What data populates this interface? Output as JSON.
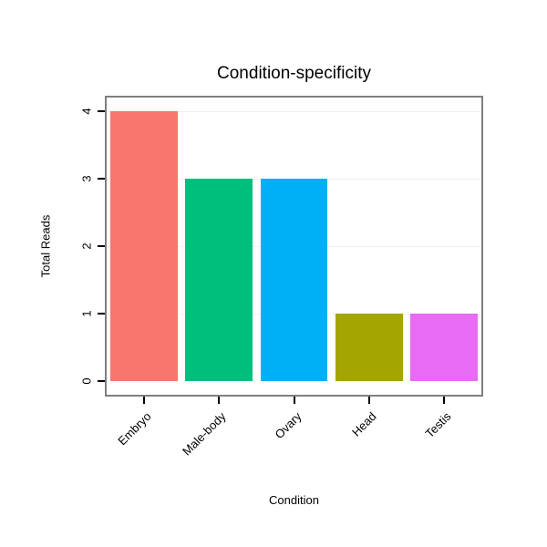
{
  "chart_data": {
    "type": "bar",
    "title": "Condition-specificity",
    "xlabel": "Condition",
    "ylabel": "Total Reads",
    "categories": [
      "Embryo",
      "Male-body",
      "Ovary",
      "Head",
      "Testis"
    ],
    "values": [
      4,
      3,
      3,
      1,
      1
    ],
    "colors": [
      "#F8766D",
      "#00BF7D",
      "#00B0F6",
      "#A3A500",
      "#E76BF3"
    ],
    "ylim": [
      0,
      4
    ],
    "yticks": [
      0,
      1,
      2,
      3,
      4
    ],
    "grid": "faint horizontal gridlines at integer values",
    "legend": "none",
    "bar_width_fraction": 0.9,
    "axis_expansion": 0.05,
    "panel_border_color": "#7f7f7f"
  }
}
